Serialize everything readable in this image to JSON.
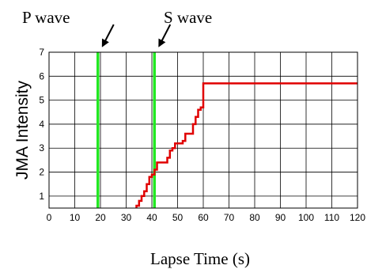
{
  "chart_data": {
    "type": "line",
    "xlabel": "Lapse Time (s)",
    "ylabel": "JMA Intensity",
    "xlim": [
      0,
      120
    ],
    "ylim": [
      0.5,
      7
    ],
    "x_ticks": [
      0,
      10,
      20,
      30,
      40,
      50,
      60,
      70,
      80,
      90,
      100,
      110,
      120
    ],
    "y_ticks": [
      1,
      2,
      3,
      4,
      5,
      6,
      7
    ],
    "grid": true,
    "series": [
      {
        "color": "#e00000",
        "x": [
          34,
          34,
          35,
          35,
          36,
          36,
          37,
          37,
          38,
          38,
          39,
          39,
          40,
          40,
          41,
          41,
          42,
          42,
          44,
          44,
          46,
          46,
          47,
          47,
          48,
          48,
          49,
          49,
          52,
          52,
          53,
          53,
          55,
          55,
          56,
          56,
          57,
          57,
          58,
          58,
          59,
          59,
          60,
          60,
          120
        ],
        "y": [
          0.5,
          0.6,
          0.6,
          0.8,
          0.8,
          1.0,
          1.0,
          1.2,
          1.2,
          1.5,
          1.5,
          1.8,
          1.8,
          1.9,
          1.9,
          2.1,
          2.1,
          2.4,
          2.4,
          2.4,
          2.4,
          2.6,
          2.6,
          2.9,
          2.9,
          3.0,
          3.0,
          3.2,
          3.2,
          3.3,
          3.3,
          3.6,
          3.6,
          3.6,
          3.6,
          4.0,
          4.0,
          4.3,
          4.3,
          4.6,
          4.6,
          4.7,
          4.7,
          5.7,
          5.7
        ]
      }
    ],
    "markers": [
      {
        "x": 19,
        "color": "#22e822"
      },
      {
        "x": 41,
        "color": "#22e822"
      }
    ],
    "annotations": [
      {
        "text": "P wave",
        "arrow_to_x": 19
      },
      {
        "text": "S wave",
        "arrow_to_x": 41
      }
    ]
  }
}
